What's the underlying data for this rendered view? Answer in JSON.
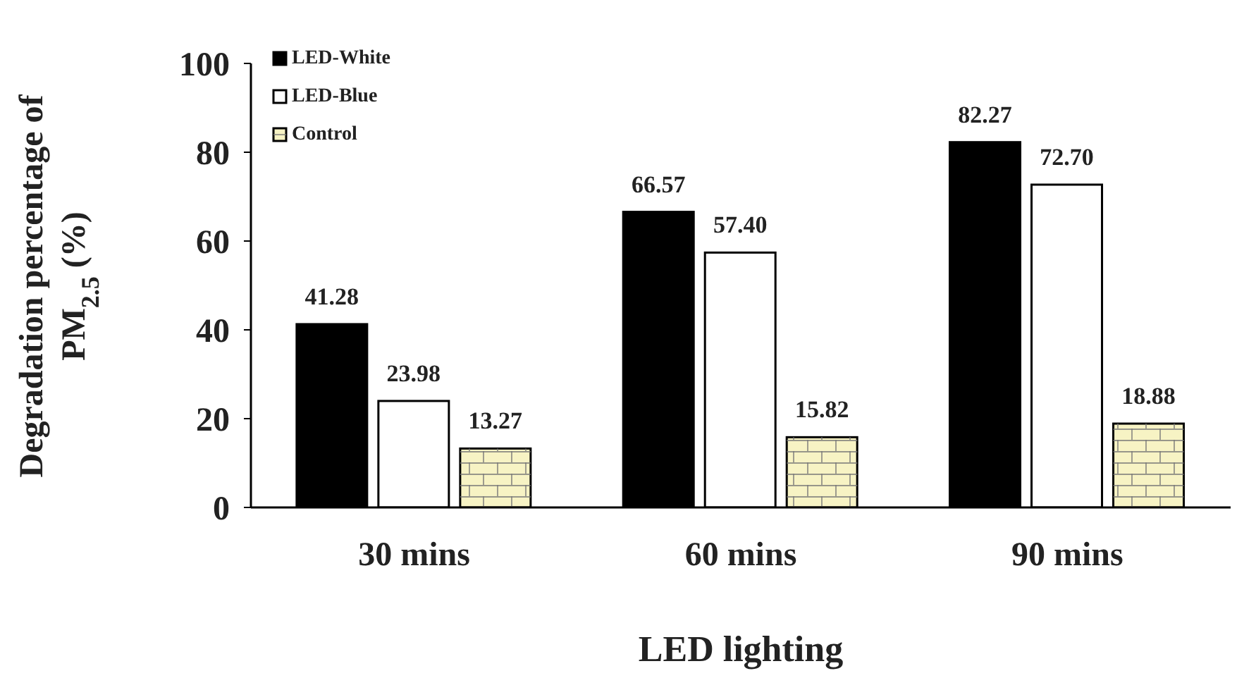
{
  "chart_data": {
    "type": "bar",
    "xlabel": "LED lighting",
    "ylabel": "Degradation percentage of PM$_{2.5}$ (%)",
    "categories": [
      "30 mins",
      "60 mins",
      "90 mins"
    ],
    "series": [
      {
        "name": "LED-White",
        "color": "#000000",
        "values": [
          41.28,
          66.57,
          82.27
        ],
        "value_labels": [
          "41.28",
          "66.57",
          "82.27"
        ]
      },
      {
        "name": "LED-Blue",
        "color": "#ffffff",
        "values": [
          23.98,
          57.4,
          72.7
        ],
        "value_labels": [
          "23.98",
          "57.40",
          "72.70"
        ]
      },
      {
        "name": "Control",
        "color": "#f7f3c4",
        "values": [
          13.27,
          15.82,
          18.88
        ],
        "value_labels": [
          "13.27",
          "15.82",
          "18.88"
        ]
      }
    ],
    "ylim": [
      0,
      100
    ],
    "yticks": [
      0,
      20,
      40,
      60,
      80,
      100
    ],
    "grid": false,
    "legend": "top left"
  }
}
